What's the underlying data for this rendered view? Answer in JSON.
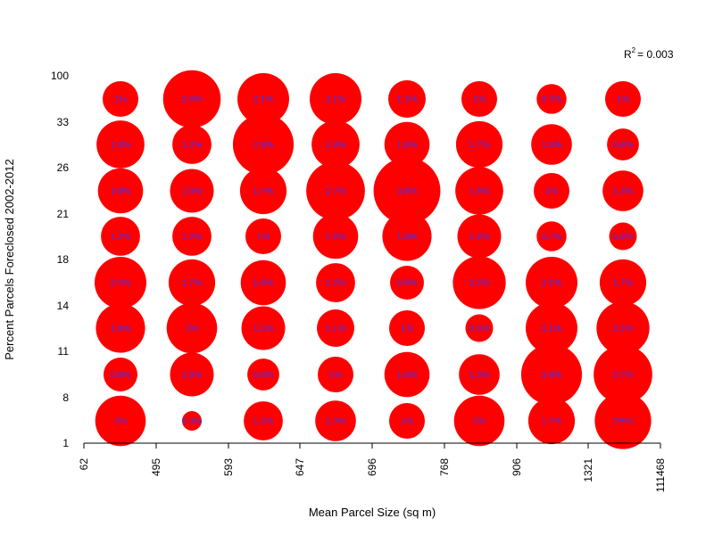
{
  "chart_data": {
    "type": "scatter",
    "title": "",
    "xlabel": "Mean Parcel Size (sq m)",
    "ylabel": "Percent Parcels Foreclosed 2002-2012",
    "x_tick_labels": [
      "62",
      "495",
      "593",
      "647",
      "696",
      "768",
      "906",
      "1321",
      "111468"
    ],
    "y_tick_labels": [
      "1",
      "8",
      "11",
      "14",
      "18",
      "21",
      "26",
      "33",
      "100"
    ],
    "r2_label": "R",
    "r2_superscript": "2",
    "r2_value": "= 0.003",
    "colors": {
      "bubble": "#ff0000",
      "label": "#3333ff",
      "axis": "#000000"
    },
    "grid": false,
    "bubble_size_encoding": "area proportional to percent",
    "rows": [
      {
        "y_bin": 1,
        "labels": [
          "2%",
          "0.3%",
          "1.2%",
          "1.3%",
          "1%",
          "2%",
          "1.7%",
          "2.5%"
        ]
      },
      {
        "y_bin": 2,
        "labels": [
          "0.9%",
          "1.5%",
          "0.8%",
          "1%",
          "1.6%",
          "1.3%",
          "2.9%",
          "2.7%"
        ]
      },
      {
        "y_bin": 3,
        "labels": [
          "1.9%",
          "2%",
          "1.5%",
          "1.1%",
          "1%",
          "0.6%",
          "2.1%",
          "2.2%"
        ]
      },
      {
        "y_bin": 4,
        "labels": [
          "2.1%",
          "1.7%",
          "1.6%",
          "1.2%",
          "0.9%",
          "2.2%",
          "2.1%",
          "1.7%"
        ]
      },
      {
        "y_bin": 5,
        "labels": [
          "1.2%",
          "1.2%",
          "1%",
          "1.6%",
          "1.9%",
          "1.5%",
          "0.7%",
          "0.6%"
        ]
      },
      {
        "y_bin": 6,
        "labels": [
          "1.6%",
          "1.5%",
          "1.7%",
          "2.7%",
          "3.5%",
          "1.8%",
          "1%",
          "1.3%"
        ]
      },
      {
        "y_bin": 7,
        "labels": [
          "1.8%",
          "1.2%",
          "2.9%",
          "1.8%",
          "1.6%",
          "1.7%",
          "1.3%",
          "0.8%"
        ]
      },
      {
        "y_bin": 8,
        "labels": [
          "1%",
          "2.6%",
          "2.1%",
          "2.1%",
          "1.1%",
          "1%",
          "0.7%",
          "1%"
        ]
      }
    ],
    "values": [
      [
        2.0,
        0.3,
        1.2,
        1.3,
        1.0,
        2.0,
        1.7,
        2.5
      ],
      [
        0.9,
        1.5,
        0.8,
        1.0,
        1.6,
        1.3,
        2.9,
        2.7
      ],
      [
        1.9,
        2.0,
        1.5,
        1.1,
        1.0,
        0.6,
        2.1,
        2.2
      ],
      [
        2.1,
        1.7,
        1.6,
        1.2,
        0.9,
        2.2,
        2.1,
        1.7
      ],
      [
        1.2,
        1.2,
        1.0,
        1.6,
        1.9,
        1.5,
        0.7,
        0.6
      ],
      [
        1.6,
        1.5,
        1.7,
        2.7,
        3.5,
        1.8,
        1.0,
        1.3
      ],
      [
        1.8,
        1.2,
        2.9,
        1.8,
        1.6,
        1.7,
        1.3,
        0.8
      ],
      [
        1.0,
        2.6,
        2.1,
        2.1,
        1.1,
        1.0,
        0.7,
        1.0
      ]
    ]
  }
}
